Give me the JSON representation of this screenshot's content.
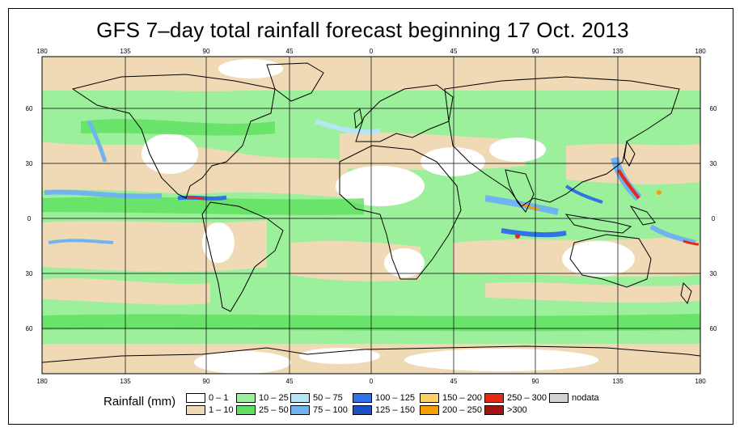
{
  "title": "GFS 7–day total rainfall forecast beginning 17 Oct. 2013",
  "longitude_labels": [
    "180",
    "135",
    "90",
    "45",
    "0",
    "45",
    "90",
    "135",
    "180"
  ],
  "latitude_labels": [
    "60",
    "30",
    "0",
    "30",
    "60"
  ],
  "legend": {
    "label": "Rainfall (mm)",
    "entries": [
      {
        "label": "0 – 1",
        "color": "#ffffff"
      },
      {
        "label": "1 – 10",
        "color": "#f0d9b5"
      },
      {
        "label": "10 – 25",
        "color": "#9cf09c"
      },
      {
        "label": "25 – 50",
        "color": "#5ee05e"
      },
      {
        "label": "50 – 75",
        "color": "#b4e6f5"
      },
      {
        "label": "75 – 100",
        "color": "#6fb4f0"
      },
      {
        "label": "100 – 125",
        "color": "#2f73e6"
      },
      {
        "label": "125 – 150",
        "color": "#1d4fc4"
      },
      {
        "label": "150 – 200",
        "color": "#fad264"
      },
      {
        "label": "200 – 250",
        "color": "#f5a000"
      },
      {
        "label": "250 – 300",
        "color": "#e62814"
      },
      {
        "label": ">300",
        "color": "#a01414"
      },
      {
        "label": "nodata",
        "color": "#d2d2d2"
      }
    ]
  }
}
